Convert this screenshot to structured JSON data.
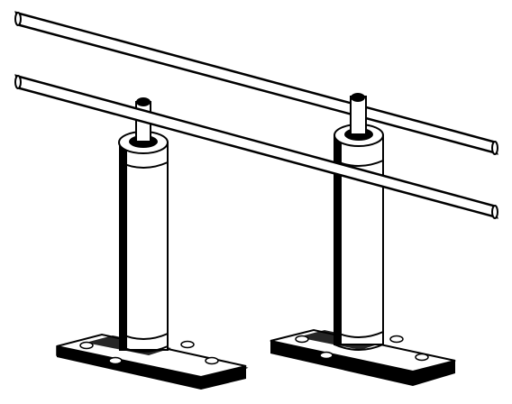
{
  "figure": {
    "kind": "line-art illustration",
    "stroke_color": "#000000",
    "fill_color": "#ffffff",
    "shade_color": "#d8d8d8",
    "elements": {
      "rods": 2,
      "posts": 2,
      "mounting_holes_per_base": 4
    }
  }
}
